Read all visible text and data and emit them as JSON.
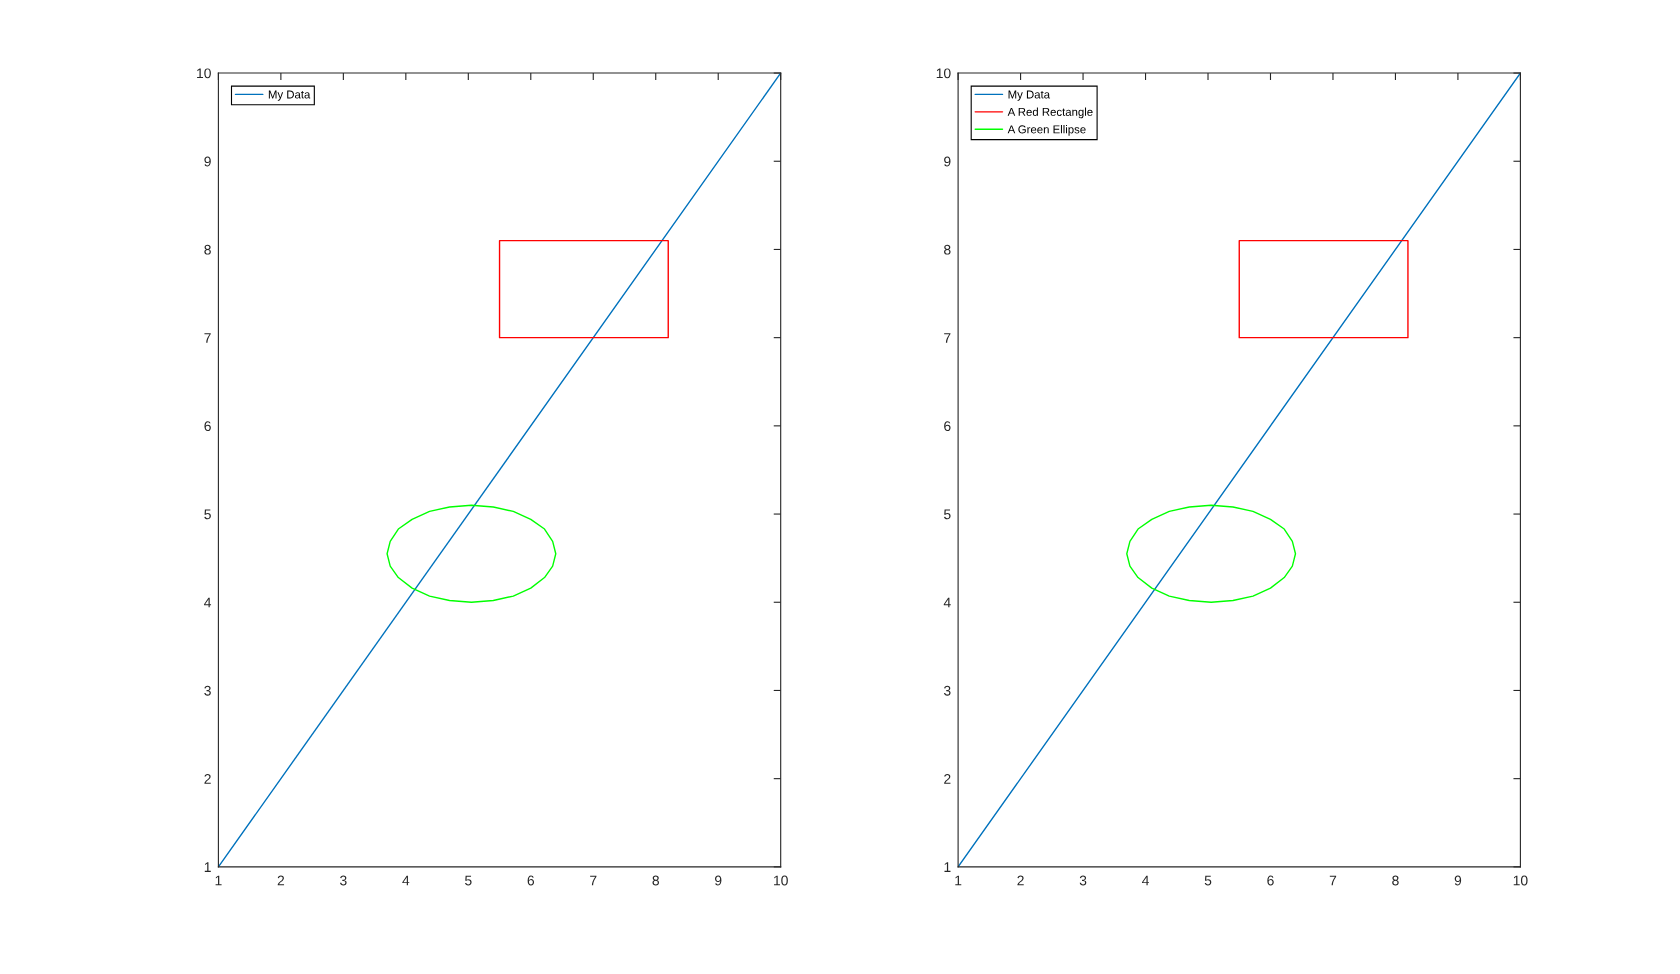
{
  "chart_data": [
    {
      "type": "line",
      "xlim": [
        1,
        10
      ],
      "ylim": [
        1,
        10
      ],
      "xticks": [
        1,
        2,
        3,
        4,
        5,
        6,
        7,
        8,
        9,
        10
      ],
      "yticks": [
        1,
        2,
        3,
        4,
        5,
        6,
        7,
        8,
        9,
        10
      ],
      "legend": "top left",
      "series": [
        {
          "name": "My Data",
          "color": "#0072bd",
          "x": [
            1,
            10
          ],
          "values": [
            1,
            10
          ]
        },
        {
          "color": "#ff0000",
          "x": [
            5.5,
            8.2,
            8.2,
            5.5,
            5.5,
            8.2
          ],
          "values": [
            7,
            7,
            8.1,
            8.1,
            7,
            7
          ]
        },
        {
          "color": "#00ff00",
          "x": [
            6.4,
            6.35,
            6.22,
            6.0,
            5.72,
            5.4,
            5.05,
            4.7,
            4.38,
            4.1,
            3.88,
            3.75,
            3.7,
            3.75,
            3.88,
            4.1,
            4.38,
            4.7,
            5.05,
            5.4,
            5.72,
            6.0,
            6.22,
            6.35,
            6.4,
            6.35
          ],
          "values": [
            4.55,
            4.69,
            4.83,
            4.94,
            5.03,
            5.08,
            5.1,
            5.08,
            5.03,
            4.94,
            4.83,
            4.69,
            4.55,
            4.41,
            4.28,
            4.16,
            4.07,
            4.02,
            4.0,
            4.02,
            4.07,
            4.16,
            4.28,
            4.41,
            4.55,
            4.69
          ]
        }
      ]
    },
    {
      "type": "line",
      "xlim": [
        1,
        10
      ],
      "ylim": [
        1,
        10
      ],
      "xticks": [
        1,
        2,
        3,
        4,
        5,
        6,
        7,
        8,
        9,
        10
      ],
      "yticks": [
        1,
        2,
        3,
        4,
        5,
        6,
        7,
        8,
        9,
        10
      ],
      "legend": "top left",
      "series": [
        {
          "name": "My Data",
          "color": "#0072bd",
          "x": [
            1,
            10
          ],
          "values": [
            1,
            10
          ]
        },
        {
          "name": "A Red Rectangle",
          "color": "#ff0000",
          "x": [
            5.5,
            8.2,
            8.2,
            5.5,
            5.5,
            8.2
          ],
          "values": [
            7,
            7,
            8.1,
            8.1,
            7,
            7
          ]
        },
        {
          "name": "A Green Ellipse",
          "color": "#00ff00",
          "x": [
            6.4,
            6.35,
            6.22,
            6.0,
            5.72,
            5.4,
            5.05,
            4.7,
            4.38,
            4.1,
            3.88,
            3.75,
            3.7,
            3.75,
            3.88,
            4.1,
            4.38,
            4.7,
            5.05,
            5.4,
            5.72,
            6.0,
            6.22,
            6.35,
            6.4,
            6.35
          ],
          "values": [
            4.55,
            4.69,
            4.83,
            4.94,
            5.03,
            5.08,
            5.1,
            5.08,
            5.03,
            4.94,
            4.83,
            4.69,
            4.55,
            4.41,
            4.28,
            4.16,
            4.07,
            4.02,
            4.0,
            4.02,
            4.07,
            4.16,
            4.28,
            4.41,
            4.55,
            4.69
          ]
        }
      ]
    }
  ]
}
